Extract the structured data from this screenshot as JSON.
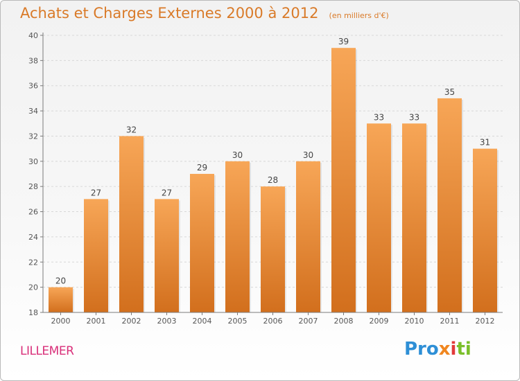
{
  "header": {
    "title": "Achats et Charges Externes 2000 à 2012",
    "subtitle": "(en milliers d'€)"
  },
  "footer": {
    "commune": "LILLEMER",
    "logo_text": "Proxiti"
  },
  "colors": {
    "title": "#d97a28",
    "bar_top": "#f7a657",
    "bar_bottom": "#d26f1d",
    "commune": "#d9307a",
    "grid": "#d8d8d8",
    "axis": "#7a7a7a"
  },
  "chart_data": {
    "type": "bar",
    "title": "Achats et Charges Externes 2000 à 2012",
    "subtitle": "(en milliers d'€)",
    "categories": [
      "2000",
      "2001",
      "2002",
      "2003",
      "2004",
      "2005",
      "2006",
      "2007",
      "2008",
      "2009",
      "2010",
      "2011",
      "2012"
    ],
    "values": [
      20,
      27,
      32,
      27,
      29,
      30,
      28,
      30,
      39,
      33,
      33,
      35,
      31
    ],
    "ylim": [
      18,
      40
    ],
    "yticks": [
      18,
      20,
      22,
      24,
      26,
      28,
      30,
      32,
      34,
      36,
      38,
      40
    ],
    "grid": "horizontal dashed",
    "data_labels": true
  }
}
